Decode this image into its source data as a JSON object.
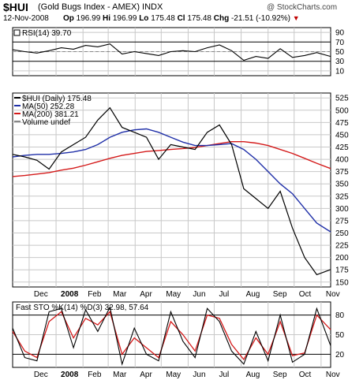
{
  "header": {
    "symbol": "$HUI",
    "name": "(Gold Bugs Index - AMEX) INDX",
    "watermark": "@ StockCharts.com",
    "date": "12-Nov-2008",
    "open_label": "Op",
    "open": "196.99",
    "high_label": "Hi",
    "high": "196.99",
    "low_label": "Lo",
    "low": "175.48",
    "close_label": "Cl",
    "close": "175.48",
    "change_label": "Chg",
    "change": "-21.51 (-10.92%)",
    "change_arrow": "▼"
  },
  "colors": {
    "price": "#000000",
    "ma50": "#1f2fa8",
    "ma200": "#d41a1a",
    "stok": "#000000",
    "stod": "#d41a1a",
    "grid": "#c8c8c8"
  },
  "chart_data": [
    {
      "type": "line",
      "panel": "RSI",
      "legend": "RSI(14) 39.70",
      "y_ticks": [
        "90",
        "70",
        "50",
        "30",
        "10"
      ],
      "ylim": [
        0,
        100
      ],
      "reference_lines": [
        30,
        70
      ],
      "series": [
        {
          "name": "RSI(14)",
          "x": [
            "2007-11-12",
            "2007-11-26",
            "2007-12-10",
            "2007-12-24",
            "2008-01-07",
            "2008-01-21",
            "2008-02-04",
            "2008-02-18",
            "2008-03-03",
            "2008-03-17",
            "2008-03-31",
            "2008-04-14",
            "2008-04-28",
            "2008-05-12",
            "2008-05-26",
            "2008-06-09",
            "2008-06-23",
            "2008-07-07",
            "2008-07-21",
            "2008-08-04",
            "2008-08-18",
            "2008-09-01",
            "2008-09-15",
            "2008-09-29",
            "2008-10-13",
            "2008-10-27",
            "2008-11-12"
          ],
          "values": [
            54,
            50,
            47,
            52,
            58,
            55,
            63,
            60,
            66,
            45,
            50,
            46,
            42,
            50,
            52,
            50,
            58,
            64,
            52,
            32,
            40,
            36,
            56,
            38,
            42,
            48,
            40
          ]
        }
      ]
    },
    {
      "type": "line",
      "panel": "price",
      "legend": [
        "$HUI (Daily) 175.48",
        "MA(50) 252.28",
        "MA(200) 381.21",
        "Volume undef"
      ],
      "x_tick_labels": [
        "Dec",
        "2008",
        "Feb",
        "Mar",
        "Apr",
        "May",
        "Jun",
        "Jul",
        "Aug",
        "Sep",
        "Oct",
        "Nov"
      ],
      "y_ticks": [
        150,
        175,
        200,
        225,
        250,
        275,
        300,
        325,
        350,
        375,
        400,
        425,
        450,
        475,
        500,
        525
      ],
      "ylim": [
        140,
        535
      ],
      "series": [
        {
          "name": "$HUI (Daily)",
          "x": [
            "2007-11-12",
            "2007-11-26",
            "2007-12-10",
            "2007-12-24",
            "2008-01-07",
            "2008-01-21",
            "2008-02-04",
            "2008-02-18",
            "2008-03-03",
            "2008-03-17",
            "2008-03-31",
            "2008-04-14",
            "2008-04-28",
            "2008-05-12",
            "2008-05-26",
            "2008-06-09",
            "2008-06-23",
            "2008-07-07",
            "2008-07-21",
            "2008-08-04",
            "2008-08-18",
            "2008-09-01",
            "2008-09-15",
            "2008-09-29",
            "2008-10-13",
            "2008-10-27",
            "2008-11-12"
          ],
          "values": [
            410,
            405,
            398,
            380,
            415,
            430,
            445,
            480,
            505,
            465,
            455,
            445,
            400,
            430,
            425,
            420,
            455,
            470,
            430,
            340,
            320,
            300,
            335,
            260,
            200,
            165,
            175.48
          ]
        },
        {
          "name": "MA(50)",
          "x": [
            "2007-11-12",
            "2007-11-26",
            "2007-12-10",
            "2007-12-24",
            "2008-01-07",
            "2008-01-21",
            "2008-02-04",
            "2008-02-18",
            "2008-03-03",
            "2008-03-17",
            "2008-03-31",
            "2008-04-14",
            "2008-04-28",
            "2008-05-12",
            "2008-05-26",
            "2008-06-09",
            "2008-06-23",
            "2008-07-07",
            "2008-07-21",
            "2008-08-04",
            "2008-08-18",
            "2008-09-01",
            "2008-09-15",
            "2008-09-29",
            "2008-10-13",
            "2008-10-27",
            "2008-11-12"
          ],
          "values": [
            405,
            408,
            410,
            410,
            412,
            415,
            420,
            430,
            445,
            455,
            460,
            462,
            455,
            445,
            435,
            428,
            428,
            430,
            432,
            420,
            400,
            375,
            350,
            330,
            300,
            270,
            252.28
          ]
        },
        {
          "name": "MA(200)",
          "x": [
            "2007-11-12",
            "2007-11-26",
            "2007-12-10",
            "2007-12-24",
            "2008-01-07",
            "2008-01-21",
            "2008-02-04",
            "2008-02-18",
            "2008-03-03",
            "2008-03-17",
            "2008-03-31",
            "2008-04-14",
            "2008-04-28",
            "2008-05-12",
            "2008-05-26",
            "2008-06-09",
            "2008-06-23",
            "2008-07-07",
            "2008-07-21",
            "2008-08-04",
            "2008-08-18",
            "2008-09-01",
            "2008-09-15",
            "2008-09-29",
            "2008-10-13",
            "2008-10-27",
            "2008-11-12"
          ],
          "values": [
            365,
            367,
            370,
            373,
            378,
            382,
            388,
            395,
            402,
            408,
            412,
            416,
            418,
            420,
            422,
            424,
            428,
            432,
            436,
            436,
            433,
            428,
            420,
            412,
            402,
            392,
            381.21
          ]
        }
      ]
    },
    {
      "type": "line",
      "panel": "Fast STO",
      "legend": "Fast STO %K(14) %D(3) 32.98, 57.64",
      "x_tick_labels": [
        "Dec",
        "2008",
        "Feb",
        "Mar",
        "Apr",
        "May",
        "Jun",
        "Jul",
        "Aug",
        "Sep",
        "Oct",
        "Nov"
      ],
      "y_ticks": [
        "80",
        "50",
        "20"
      ],
      "ylim": [
        0,
        100
      ],
      "reference_lines": [
        20,
        80
      ],
      "series": [
        {
          "name": "%K(14)",
          "x": [
            "2007-11-12",
            "2007-11-26",
            "2007-12-10",
            "2007-12-24",
            "2008-01-07",
            "2008-01-21",
            "2008-02-04",
            "2008-02-18",
            "2008-03-03",
            "2008-03-17",
            "2008-03-31",
            "2008-04-14",
            "2008-04-28",
            "2008-05-12",
            "2008-05-26",
            "2008-06-09",
            "2008-06-23",
            "2008-07-07",
            "2008-07-21",
            "2008-08-04",
            "2008-08-18",
            "2008-09-01",
            "2008-09-15",
            "2008-09-29",
            "2008-10-13",
            "2008-10-27",
            "2008-11-12"
          ],
          "values": [
            60,
            15,
            10,
            85,
            90,
            30,
            88,
            55,
            92,
            5,
            60,
            20,
            10,
            85,
            40,
            15,
            90,
            70,
            25,
            5,
            55,
            10,
            80,
            8,
            20,
            90,
            32.98
          ]
        },
        {
          "name": "%D(3)",
          "x": [
            "2007-11-12",
            "2007-11-26",
            "2007-12-10",
            "2007-12-24",
            "2008-01-07",
            "2008-01-21",
            "2008-02-04",
            "2008-02-18",
            "2008-03-03",
            "2008-03-17",
            "2008-03-31",
            "2008-04-14",
            "2008-04-28",
            "2008-05-12",
            "2008-05-26",
            "2008-06-09",
            "2008-06-23",
            "2008-07-07",
            "2008-07-21",
            "2008-08-04",
            "2008-08-18",
            "2008-09-01",
            "2008-09-15",
            "2008-09-29",
            "2008-10-13",
            "2008-10-27",
            "2008-11-12"
          ],
          "values": [
            55,
            25,
            15,
            70,
            85,
            45,
            75,
            65,
            85,
            20,
            45,
            30,
            15,
            70,
            50,
            25,
            80,
            75,
            35,
            12,
            45,
            20,
            70,
            18,
            22,
            80,
            57.64
          ]
        }
      ]
    }
  ]
}
